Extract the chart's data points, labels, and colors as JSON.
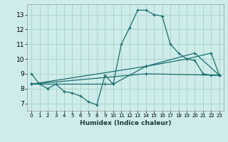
{
  "xlabel": "Humidex (Indice chaleur)",
  "background_color": "#ceecea",
  "grid_color": "#aed4d0",
  "line_color": "#1a6e6e",
  "xlim": [
    -0.5,
    23.5
  ],
  "ylim": [
    6.5,
    13.7
  ],
  "xticks": [
    0,
    1,
    2,
    3,
    4,
    5,
    6,
    7,
    8,
    9,
    10,
    11,
    12,
    13,
    14,
    15,
    16,
    17,
    18,
    19,
    20,
    21,
    22,
    23
  ],
  "yticks": [
    7,
    8,
    9,
    10,
    11,
    12,
    13
  ],
  "lines": [
    {
      "x": [
        0,
        1,
        2,
        3,
        4,
        5,
        6,
        7,
        8,
        9,
        10,
        11,
        12,
        13,
        14,
        15,
        16,
        17,
        18,
        19,
        20,
        21,
        22,
        23
      ],
      "y": [
        9.0,
        8.3,
        8.0,
        8.3,
        7.8,
        7.7,
        7.5,
        7.1,
        6.9,
        8.9,
        8.3,
        11.0,
        12.1,
        13.3,
        13.3,
        13.0,
        12.9,
        11.0,
        10.4,
        10.0,
        9.9,
        9.0,
        8.9,
        8.9
      ]
    },
    {
      "x": [
        0,
        9,
        10,
        14,
        19,
        22,
        23
      ],
      "y": [
        8.3,
        8.3,
        8.3,
        9.5,
        10.0,
        10.4,
        8.9
      ]
    },
    {
      "x": [
        0,
        14,
        20,
        23
      ],
      "y": [
        8.3,
        9.5,
        10.4,
        8.9
      ]
    },
    {
      "x": [
        0,
        14,
        23
      ],
      "y": [
        8.3,
        9.0,
        8.9
      ]
    }
  ]
}
